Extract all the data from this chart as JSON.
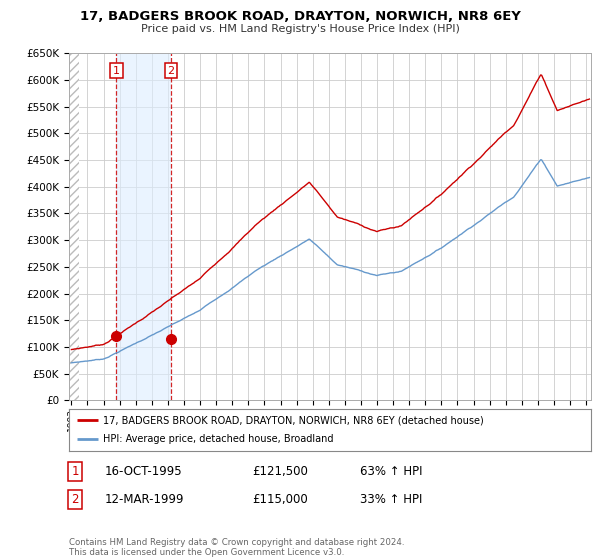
{
  "title": "17, BADGERS BROOK ROAD, DRAYTON, NORWICH, NR8 6EY",
  "subtitle": "Price paid vs. HM Land Registry's House Price Index (HPI)",
  "legend_line1": "17, BADGERS BROOK ROAD, DRAYTON, NORWICH, NR8 6EY (detached house)",
  "legend_line2": "HPI: Average price, detached house, Broadland",
  "sale1_date": "16-OCT-1995",
  "sale1_price": "£121,500",
  "sale1_hpi": "63% ↑ HPI",
  "sale2_date": "12-MAR-1999",
  "sale2_price": "£115,000",
  "sale2_hpi": "33% ↑ HPI",
  "footer": "Contains HM Land Registry data © Crown copyright and database right 2024.\nThis data is licensed under the Open Government Licence v3.0.",
  "sale1_x": 1995.79,
  "sale1_y": 121500,
  "sale2_x": 1999.19,
  "sale2_y": 115000,
  "red_color": "#cc0000",
  "blue_color": "#6699cc",
  "blue_shade": "#ddeeff",
  "grid_color": "#cccccc",
  "yticks": [
    0,
    50000,
    100000,
    150000,
    200000,
    250000,
    300000,
    350000,
    400000,
    450000,
    500000,
    550000,
    600000,
    650000
  ],
  "xlim_start": 1993.0,
  "xlim_end": 2025.3,
  "ylim_top": 650000
}
